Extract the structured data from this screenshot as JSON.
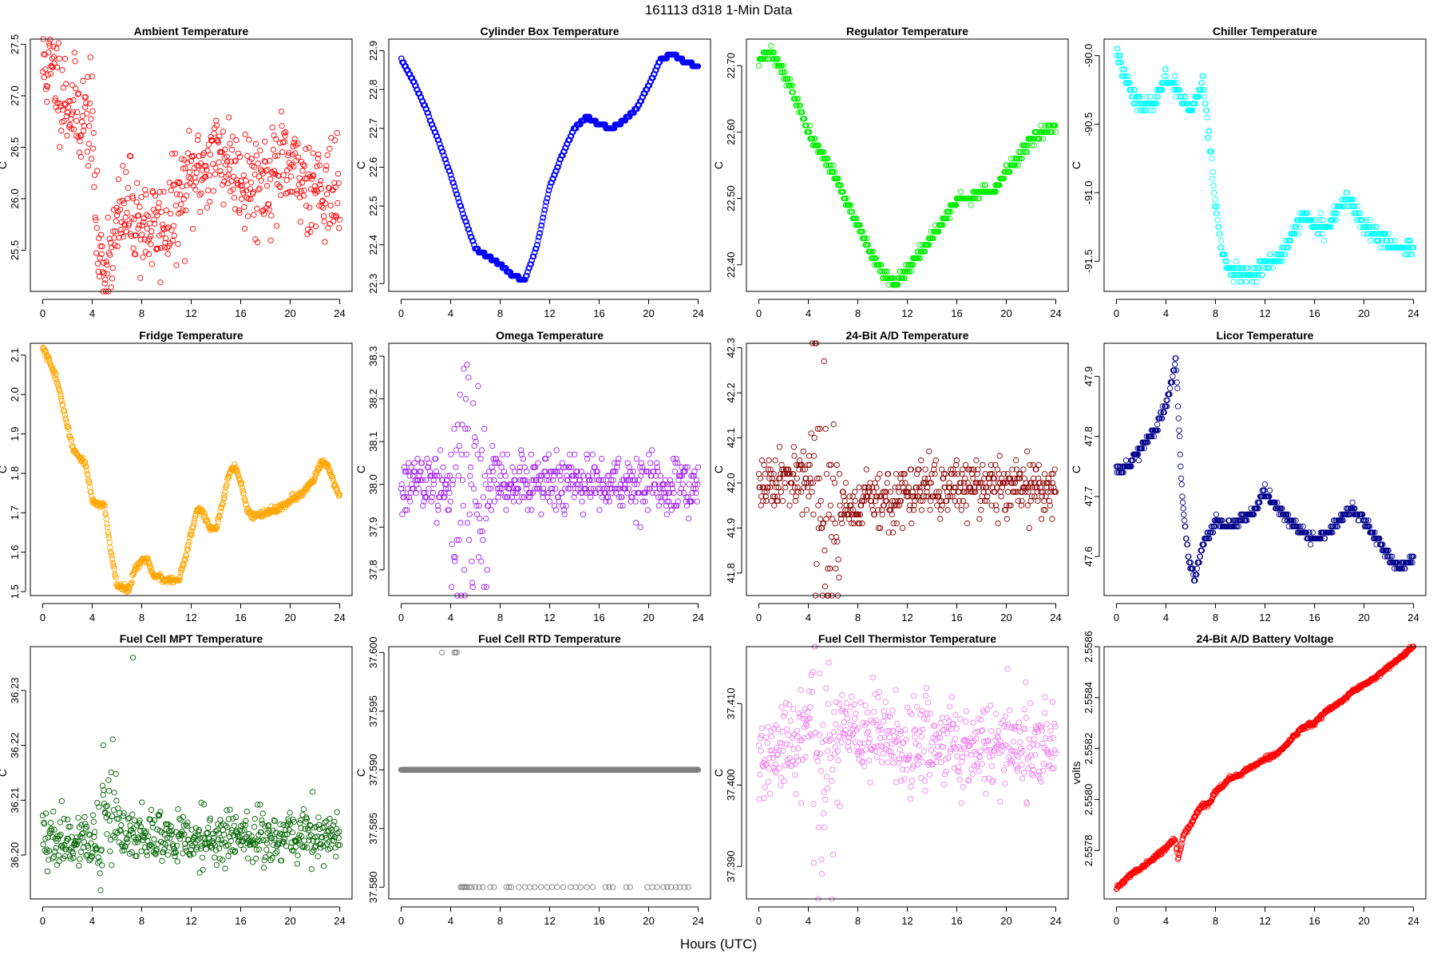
{
  "figure": {
    "suptitle": "161113    d318    1-Min Data",
    "xlabel": "Hours (UTC)",
    "point_style": "open-circle"
  },
  "chart_data": [
    {
      "type": "scatter",
      "title": "Ambient Temperature",
      "ylabel": "C",
      "color": "#ff0000",
      "xlim": [
        -1,
        25
      ],
      "ylim": [
        25.1,
        27.55
      ],
      "xticks": [
        0,
        4,
        8,
        12,
        16,
        20,
        24
      ],
      "yticks": [
        25.5,
        26.0,
        26.5,
        27.0,
        27.5
      ],
      "ytick_labels": [
        "25.5",
        "26.0",
        "26.5",
        "27.0",
        "27.5"
      ],
      "x": [
        0,
        1,
        2,
        3,
        4,
        4.3,
        4.6,
        5,
        5.5,
        6,
        6.5,
        7,
        8,
        9,
        10,
        11,
        12,
        13,
        14,
        15,
        16,
        17,
        18,
        19,
        20,
        21,
        22,
        23,
        24
      ],
      "y": [
        27.3,
        27.2,
        26.95,
        26.8,
        26.8,
        25.75,
        25.4,
        25.35,
        25.5,
        25.7,
        25.85,
        25.9,
        25.75,
        25.7,
        25.75,
        25.95,
        26.2,
        26.3,
        26.45,
        26.35,
        26.25,
        26.15,
        26.2,
        26.3,
        26.25,
        26.2,
        26.15,
        26.1,
        26.0
      ],
      "noise": 0.24,
      "quantum": 0,
      "seed": 11
    },
    {
      "type": "scatter",
      "title": "Cylinder Box Temperature",
      "ylabel": "C",
      "color": "#0000ff",
      "xlim": [
        -1,
        25
      ],
      "ylim": [
        22.28,
        22.93
      ],
      "xticks": [
        0,
        4,
        8,
        12,
        16,
        20,
        24
      ],
      "yticks": [
        22.3,
        22.4,
        22.5,
        22.6,
        22.7,
        22.8,
        22.9
      ],
      "ytick_labels": [
        "22.3",
        "22.4",
        "22.5",
        "22.6",
        "22.7",
        "22.8",
        "22.9"
      ],
      "x": [
        0,
        1,
        2,
        3,
        4,
        5,
        6,
        7,
        8,
        9,
        10,
        11,
        12,
        13,
        14,
        15,
        16,
        17,
        18,
        19,
        20,
        21,
        22,
        23,
        24
      ],
      "y": [
        22.88,
        22.82,
        22.75,
        22.67,
        22.58,
        22.48,
        22.39,
        22.37,
        22.35,
        22.32,
        22.31,
        22.4,
        22.55,
        22.63,
        22.7,
        22.73,
        22.71,
        22.7,
        22.72,
        22.75,
        22.81,
        22.88,
        22.89,
        22.87,
        22.86
      ],
      "noise": 0,
      "quantum": 0.01,
      "seed": 12
    },
    {
      "type": "scatter",
      "title": "Regulator Temperature",
      "ylabel": "C",
      "color": "#00ee00",
      "xlim": [
        -1,
        25
      ],
      "ylim": [
        22.36,
        22.74
      ],
      "xticks": [
        0,
        4,
        8,
        12,
        16,
        20,
        24
      ],
      "yticks": [
        22.4,
        22.5,
        22.6,
        22.7
      ],
      "ytick_labels": [
        "22.40",
        "22.50",
        "22.60",
        "22.70"
      ],
      "x": [
        0,
        1,
        2,
        3,
        4,
        5,
        6,
        7,
        8,
        9,
        10,
        11,
        12,
        13,
        14,
        15,
        16,
        17,
        18,
        19,
        20,
        21,
        22,
        23,
        24
      ],
      "y": [
        22.71,
        22.72,
        22.69,
        22.65,
        22.6,
        22.57,
        22.54,
        22.5,
        22.46,
        22.42,
        22.39,
        22.37,
        22.39,
        22.42,
        22.44,
        22.47,
        22.5,
        22.5,
        22.51,
        22.51,
        22.54,
        22.56,
        22.59,
        22.6,
        22.61
      ],
      "noise": 0.004,
      "quantum": 0.01,
      "seed": 13
    },
    {
      "type": "scatter",
      "title": "Chiller Temperature",
      "ylabel": "C",
      "color": "#00ffff",
      "xlim": [
        -1,
        25
      ],
      "ylim": [
        -91.72,
        -89.88
      ],
      "xticks": [
        0,
        4,
        8,
        12,
        16,
        20,
        24
      ],
      "yticks": [
        -91.5,
        -91.0,
        -90.5,
        -90.0
      ],
      "ytick_labels": [
        "-91.5",
        "-91.0",
        "-90.5",
        "-90.0"
      ],
      "x": [
        0,
        0.5,
        1,
        1.5,
        2,
        3,
        3.5,
        4,
        5,
        5.5,
        6,
        6.5,
        7,
        7.5,
        8,
        8.5,
        9,
        10,
        11,
        12,
        13,
        14,
        15,
        16,
        17,
        18,
        19,
        20,
        21,
        22,
        23,
        24
      ],
      "y": [
        -89.95,
        -90.1,
        -90.2,
        -90.3,
        -90.35,
        -90.35,
        -90.25,
        -90.15,
        -90.25,
        -90.35,
        -90.4,
        -90.3,
        -90.2,
        -90.6,
        -91.1,
        -91.4,
        -91.55,
        -91.6,
        -91.6,
        -91.5,
        -91.5,
        -91.35,
        -91.15,
        -91.25,
        -91.25,
        -91.1,
        -91.05,
        -91.25,
        -91.3,
        -91.35,
        -91.4,
        -91.4
      ],
      "noise": 0.03,
      "quantum": 0.05,
      "seed": 14
    },
    {
      "type": "scatter",
      "title": "Fridge Temperature",
      "ylabel": "C",
      "color": "#ffa500",
      "xlim": [
        -1,
        25
      ],
      "ylim": [
        1.49,
        2.13
      ],
      "xticks": [
        0,
        4,
        8,
        12,
        16,
        20,
        24
      ],
      "yticks": [
        1.5,
        1.6,
        1.7,
        1.8,
        1.9,
        2.0,
        2.1
      ],
      "ytick_labels": [
        "1.5",
        "1.6",
        "1.7",
        "1.8",
        "1.9",
        "2.0",
        "2.1"
      ],
      "x": [
        0,
        0.5,
        1,
        1.5,
        2,
        2.5,
        3,
        3.5,
        4,
        4.5,
        5,
        5.5,
        6,
        6.5,
        7,
        7.5,
        8,
        8.5,
        9,
        10,
        11,
        11.5,
        12,
        12.5,
        13,
        13.5,
        14,
        14.5,
        15,
        15.5,
        16,
        16.5,
        17,
        18,
        19,
        20,
        21,
        22,
        22.5,
        23,
        23.5,
        24
      ],
      "y": [
        2.12,
        2.09,
        2.05,
        1.99,
        1.92,
        1.86,
        1.84,
        1.82,
        1.73,
        1.72,
        1.72,
        1.6,
        1.52,
        1.51,
        1.51,
        1.56,
        1.58,
        1.58,
        1.54,
        1.53,
        1.53,
        1.58,
        1.65,
        1.71,
        1.7,
        1.66,
        1.66,
        1.72,
        1.79,
        1.82,
        1.78,
        1.71,
        1.69,
        1.7,
        1.71,
        1.73,
        1.75,
        1.79,
        1.83,
        1.82,
        1.78,
        1.74
      ],
      "noise": 0.004,
      "quantum": 0,
      "seed": 15
    },
    {
      "type": "scatter",
      "title": "Omega Temperature",
      "ylabel": "C",
      "color": "#a020f0",
      "xlim": [
        -1,
        25
      ],
      "ylim": [
        37.74,
        38.33
      ],
      "xticks": [
        0,
        4,
        8,
        12,
        16,
        20,
        24
      ],
      "yticks": [
        37.8,
        37.9,
        38.0,
        38.1,
        38.2,
        38.3
      ],
      "ytick_labels": [
        "37.8",
        "37.9",
        "38.0",
        "38.1",
        "38.2",
        "38.3"
      ],
      "x": [
        0,
        4,
        4.3,
        4.6,
        5,
        5.4,
        5.8,
        6.3,
        7,
        8,
        12,
        16,
        20,
        24
      ],
      "y": [
        38.0,
        38.0,
        38.02,
        38.0,
        37.98,
        38.02,
        38.0,
        37.99,
        38.0,
        38.0,
        38.0,
        38.0,
        38.0,
        38.0
      ],
      "noise": 0.035,
      "quantum": 0.01,
      "seed": 16,
      "spread": {
        "start": 4,
        "end": 7,
        "amp": 0.2
      }
    },
    {
      "type": "scatter",
      "title": "24-Bit A/D Temperature",
      "ylabel": "C",
      "color": "#8b0000",
      "xlim": [
        -1,
        25
      ],
      "ylim": [
        41.75,
        42.31
      ],
      "xticks": [
        0,
        4,
        8,
        12,
        16,
        20,
        24
      ],
      "yticks": [
        41.8,
        41.9,
        42.0,
        42.1,
        42.2,
        42.3
      ],
      "ytick_labels": [
        "41.8",
        "41.9",
        "42.0",
        "42.1",
        "42.2",
        "42.3"
      ],
      "x": [
        0,
        4,
        4.5,
        5,
        5.5,
        6,
        7,
        8,
        9,
        10,
        11,
        12,
        16,
        20,
        24
      ],
      "y": [
        42.0,
        42.0,
        42.02,
        41.9,
        41.85,
        41.92,
        41.95,
        41.95,
        41.96,
        41.96,
        41.97,
        41.98,
        41.99,
        42.0,
        41.98
      ],
      "noise": 0.03,
      "quantum": 0.01,
      "seed": 17,
      "spread": {
        "start": 4.2,
        "end": 6.5,
        "amp": 0.25
      }
    },
    {
      "type": "scatter",
      "title": "Licor Temperature",
      "ylabel": "C",
      "color": "#00008b",
      "xlim": [
        -1,
        25
      ],
      "ylim": [
        47.535,
        47.955
      ],
      "xticks": [
        0,
        4,
        8,
        12,
        16,
        20,
        24
      ],
      "yticks": [
        47.6,
        47.7,
        47.8,
        47.9
      ],
      "ytick_labels": [
        "47.6",
        "47.7",
        "47.8",
        "47.9"
      ],
      "x": [
        0,
        1,
        2,
        3,
        4,
        4.8,
        5.3,
        5.8,
        6.3,
        7,
        8,
        9,
        10,
        11,
        12,
        13,
        14,
        15,
        16,
        17,
        18,
        19,
        20,
        21,
        22,
        23,
        24
      ],
      "y": [
        47.74,
        47.75,
        47.78,
        47.81,
        47.85,
        47.93,
        47.7,
        47.6,
        47.56,
        47.62,
        47.66,
        47.65,
        47.66,
        47.67,
        47.71,
        47.68,
        47.66,
        47.64,
        47.63,
        47.64,
        47.66,
        47.68,
        47.66,
        47.63,
        47.6,
        47.58,
        47.6
      ],
      "noise": 0.004,
      "quantum": 0.01,
      "seed": 18
    },
    {
      "type": "scatter",
      "title": "Fuel Cell MPT Temperature",
      "ylabel": "C",
      "color": "#006400",
      "xlim": [
        -1,
        25
      ],
      "ylim": [
        36.192,
        36.238
      ],
      "xticks": [
        0,
        4,
        8,
        12,
        16,
        20,
        24
      ],
      "yticks": [
        36.2,
        36.21,
        36.22,
        36.23
      ],
      "ytick_labels": [
        "36.20",
        "36.21",
        "36.22",
        "36.23"
      ],
      "x": [
        0,
        4,
        4.6,
        5,
        5.5,
        6,
        7,
        8,
        12,
        16,
        20,
        24
      ],
      "y": [
        36.203,
        36.203,
        36.197,
        36.205,
        36.21,
        36.205,
        36.204,
        36.203,
        36.203,
        36.203,
        36.204,
        36.203
      ],
      "noise": 0.0025,
      "quantum": 0,
      "seed": 19,
      "spread": {
        "start": 4.4,
        "end": 6,
        "amp": 0.006
      },
      "outliers": [
        {
          "x": 7.3,
          "y": 36.236
        },
        {
          "x": 4.9,
          "y": 36.22
        }
      ]
    },
    {
      "type": "scatter",
      "title": "Fuel Cell RTD Temperature",
      "ylabel": "C",
      "color": "#808080",
      "xlim": [
        -1,
        25
      ],
      "ylim": [
        37.579,
        37.6005
      ],
      "xticks": [
        0,
        4,
        8,
        12,
        16,
        20,
        24
      ],
      "yticks": [
        37.58,
        37.585,
        37.59,
        37.595,
        37.6
      ],
      "ytick_labels": [
        "37.580",
        "37.585",
        "37.590",
        "37.595",
        "37.600"
      ],
      "x": [
        0,
        24
      ],
      "y": [
        37.59,
        37.59
      ],
      "noise": 0,
      "quantum": 0,
      "seed": 20,
      "lows": [
        4.8,
        4.9,
        5.0,
        5.1,
        5.2,
        5.3,
        5.5,
        5.7,
        6.0,
        6.3,
        6.6,
        7.2,
        7.5,
        8.5,
        8.7,
        8.9,
        9.5,
        10.0,
        10.4,
        10.8,
        11.3,
        11.8,
        12.2,
        12.6,
        13.1,
        13.7,
        14.1,
        14.5,
        15.0,
        15.5,
        16.5,
        16.8,
        17.1,
        18.2,
        18.5,
        19.9,
        20.3,
        20.7,
        21.2,
        21.5,
        21.8,
        22.2,
        22.5,
        22.9,
        23.2
      ],
      "highs": [
        3.3,
        4.3,
        4.4,
        4.5
      ]
    },
    {
      "type": "scatter",
      "title": "Fuel Cell Thermistor Temperature",
      "ylabel": "C",
      "color": "#ee82ee",
      "xlim": [
        -1,
        25
      ],
      "ylim": [
        37.386,
        37.417
      ],
      "xticks": [
        0,
        4,
        8,
        12,
        16,
        20,
        24
      ],
      "yticks": [
        37.39,
        37.4,
        37.41
      ],
      "ytick_labels": [
        "37.390",
        "37.400",
        "37.410"
      ],
      "x": [
        0,
        1,
        2,
        3,
        4,
        4.6,
        5,
        5.5,
        6,
        7,
        8,
        10,
        12,
        16,
        20,
        24
      ],
      "y": [
        37.403,
        37.403,
        37.405,
        37.406,
        37.407,
        37.408,
        37.398,
        37.404,
        37.406,
        37.406,
        37.406,
        37.406,
        37.405,
        37.405,
        37.405,
        37.405
      ],
      "noise": 0.0028,
      "quantum": 0,
      "seed": 21,
      "spread": {
        "start": 4.3,
        "end": 6,
        "amp": 0.01
      }
    },
    {
      "type": "scatter",
      "title": "24-Bit A/D Battery Voltage",
      "ylabel": "volts",
      "color": "#ff0000",
      "xlim": [
        -1,
        25
      ],
      "ylim": [
        2.55761,
        2.5586
      ],
      "xticks": [
        0,
        4,
        8,
        12,
        16,
        20,
        24
      ],
      "yticks": [
        2.5578,
        2.558,
        2.5582,
        2.5584,
        2.5586
      ],
      "ytick_labels": [
        "2.5578",
        "2.5580",
        "2.5582",
        "2.5584",
        "2.5586"
      ],
      "x": [
        0,
        1,
        2,
        3,
        4,
        4.7,
        5,
        5.5,
        6,
        6.5,
        7,
        7.5,
        8,
        8.5,
        9,
        10,
        11,
        12,
        13,
        14,
        15,
        16,
        17,
        18,
        19,
        20,
        21,
        22,
        23,
        24
      ],
      "y": [
        2.55765,
        2.5577,
        2.55773,
        2.55777,
        2.55781,
        2.55785,
        2.55777,
        2.55787,
        2.5579,
        2.55795,
        2.55798,
        2.55798,
        2.55803,
        2.55805,
        2.55808,
        2.5581,
        2.55813,
        2.55816,
        2.55818,
        2.55823,
        2.55828,
        2.5583,
        2.55835,
        2.55838,
        2.55842,
        2.55845,
        2.55848,
        2.55852,
        2.55856,
        2.5586
      ],
      "noise": 4e-06,
      "quantum": 0,
      "seed": 22
    }
  ]
}
